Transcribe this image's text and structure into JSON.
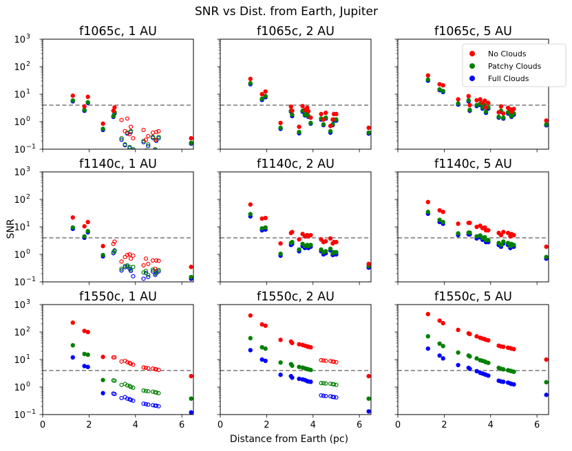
{
  "chart_data": {
    "type": "scatter",
    "title": "SNR vs Dist. from Earth, Jupiter",
    "xlabel": "Distance from Earth (pc)",
    "ylabel": "SNR",
    "xlim": [
      0,
      6.5
    ],
    "ylim": [
      0.1,
      1000
    ],
    "yscale": "log",
    "xticks": [
      "0",
      "2",
      "4",
      "6"
    ],
    "yticks": [
      {
        "base": "10",
        "exp": "−1",
        "value": 0.1
      },
      {
        "base": "10",
        "exp": "0",
        "value": 1
      },
      {
        "base": "10",
        "exp": "1",
        "value": 10
      },
      {
        "base": "10",
        "exp": "2",
        "value": 100
      },
      {
        "base": "10",
        "exp": "3",
        "value": 1000
      }
    ],
    "threshold": 4,
    "legend": {
      "location": "top-right",
      "entries": [
        {
          "label": "No Clouds",
          "color": "#ff0000"
        },
        {
          "label": "Patchy Clouds",
          "color": "#008000"
        },
        {
          "label": "Full Clouds",
          "color": "#0000ff"
        }
      ]
    },
    "distances": [
      1.3,
      1.8,
      1.95,
      2.6,
      3.05,
      3.1,
      3.4,
      3.55,
      3.65,
      3.75,
      3.8,
      3.9,
      4.35,
      4.45,
      4.55,
      4.75,
      4.85,
      4.9,
      5.0,
      6.4
    ],
    "panels": [
      {
        "title": "f1065c, 1 AU",
        "filled_mask": [
          1,
          1,
          1,
          1,
          1,
          1,
          0,
          0,
          0,
          0,
          0,
          0,
          0,
          0,
          0,
          0,
          0,
          0,
          0,
          1
        ],
        "series": [
          {
            "name": "No Clouds",
            "values": [
              8.8,
              3.6,
              8.0,
              0.85,
              2.5,
              3.3,
              1.15,
              0.45,
              1.3,
              0.35,
              0.65,
              0.25,
              0.5,
              0.22,
              0.3,
              0.4,
              0.22,
              0.42,
              0.45,
              0.25
            ]
          },
          {
            "name": "Patchy Clouds",
            "values": [
              5.9,
              2.7,
              5.1,
              0.55,
              1.6,
              2.2,
              0.25,
              0.15,
              0.4,
              0.12,
              0.45,
              0.1,
              0.2,
              0.09,
              0.15,
              0.28,
              0.1,
              0.22,
              0.28,
              0.17
            ]
          },
          {
            "name": "Full Clouds",
            "values": [
              5.5,
              2.5,
              4.8,
              0.5,
              1.5,
              2.0,
              0.22,
              0.14,
              0.37,
              0.11,
              0.42,
              0.09,
              0.18,
              0.08,
              0.13,
              0.26,
              0.09,
              0.2,
              0.25,
              0.16
            ]
          }
        ]
      },
      {
        "title": "f1065c, 2 AU",
        "filled_mask": [
          1,
          1,
          1,
          1,
          1,
          1,
          1,
          1,
          1,
          1,
          1,
          1,
          1,
          1,
          1,
          1,
          1,
          1,
          1,
          1
        ],
        "series": [
          {
            "name": "No Clouds",
            "values": [
              36,
              10,
              12.5,
              0.9,
              3.5,
              2.5,
              0.65,
              3.7,
              2.7,
              3.2,
              2.4,
              1.4,
              1.9,
              1.2,
              2.1,
              0.7,
              1.2,
              1.9,
              1.9,
              0.6
            ]
          },
          {
            "name": "Patchy Clouds",
            "values": [
              25,
              6.8,
              8.5,
              0.6,
              2.5,
              1.8,
              0.42,
              2.5,
              1.8,
              2.2,
              1.6,
              0.9,
              1.3,
              0.8,
              1.4,
              0.45,
              0.8,
              1.2,
              1.2,
              0.4
            ]
          },
          {
            "name": "Full Clouds",
            "values": [
              23,
              6.2,
              7.8,
              0.55,
              2.3,
              1.6,
              0.38,
              2.3,
              1.7,
              2.0,
              1.5,
              0.85,
              1.2,
              0.75,
              1.3,
              0.4,
              0.75,
              1.1,
              1.1,
              0.37
            ]
          }
        ]
      },
      {
        "title": "f1065c, 5 AU",
        "filled_mask": [
          1,
          1,
          1,
          1,
          1,
          1,
          1,
          1,
          1,
          1,
          1,
          1,
          1,
          1,
          1,
          1,
          1,
          1,
          1,
          1
        ],
        "series": [
          {
            "name": "No Clouds",
            "values": [
              48,
              23,
              21,
              6.5,
              8.5,
              4.0,
              6.0,
              6.5,
              4.8,
              5.8,
              3.3,
              4.8,
              2.2,
              3.6,
              2.0,
              3.2,
              2.8,
              2.3,
              2.9,
              1.1
            ]
          },
          {
            "name": "Patchy Clouds",
            "values": [
              34,
              15,
              13,
              4.6,
              6.0,
              2.7,
              4.0,
              4.5,
              3.3,
              4.0,
              2.3,
              3.3,
              1.5,
              2.5,
              1.4,
              2.2,
              1.9,
              1.6,
              2.0,
              0.8
            ]
          },
          {
            "name": "Full Clouds",
            "values": [
              31,
              14,
              12,
              4.2,
              5.5,
              2.5,
              3.7,
              4.1,
              3.0,
              3.7,
              2.1,
              3.0,
              1.4,
              2.3,
              1.3,
              2.0,
              1.8,
              1.5,
              1.8,
              0.74
            ]
          }
        ]
      },
      {
        "title": "f1140c, 1 AU",
        "filled_mask": [
          1,
          1,
          1,
          1,
          0,
          0,
          0,
          0,
          0,
          0,
          0,
          0,
          0,
          0,
          0,
          0,
          0,
          0,
          0,
          1
        ],
        "series": [
          {
            "name": "No Clouds",
            "values": [
              22,
              10.5,
              15,
              2.0,
              2.4,
              2.9,
              0.55,
              0.8,
              0.95,
              1.0,
              0.7,
              0.9,
              0.4,
              0.7,
              0.45,
              0.6,
              0.3,
              0.6,
              0.58,
              0.35
            ]
          },
          {
            "name": "Patchy Clouds",
            "values": [
              9.5,
              4.5,
              7.0,
              0.95,
              1.2,
              1.4,
              0.3,
              0.38,
              0.4,
              0.35,
              0.28,
              0.35,
              0.22,
              0.25,
              0.18,
              0.28,
              0.2,
              0.25,
              0.27,
              0.15
            ]
          },
          {
            "name": "Full Clouds",
            "values": [
              8.5,
              4.0,
              6.3,
              0.85,
              1.1,
              1.3,
              0.26,
              0.34,
              0.36,
              0.3,
              0.25,
              0.16,
              0.13,
              0.21,
              0.15,
              0.24,
              0.18,
              0.21,
              0.24,
              0.13
            ]
          }
        ]
      },
      {
        "title": "f1140c, 2 AU",
        "filled_mask": [
          1,
          1,
          1,
          1,
          1,
          1,
          1,
          1,
          1,
          1,
          1,
          1,
          1,
          1,
          1,
          1,
          1,
          1,
          1,
          1
        ],
        "series": [
          {
            "name": "No Clouds",
            "values": [
              65,
              20,
              21,
              2.5,
              6.0,
              6.5,
              3.5,
              5.5,
              4.5,
              5.0,
              4.5,
              5.0,
              3.5,
              2.8,
              3.0,
              3.8,
              2.5,
              2.8,
              2.8,
              0.45
            ]
          },
          {
            "name": "Patchy Clouds",
            "values": [
              29,
              8.8,
              9.5,
              1.05,
              2.6,
              2.8,
              1.5,
              2.4,
              2.0,
              2.2,
              2.0,
              2.2,
              1.5,
              1.2,
              1.3,
              1.6,
              1.1,
              1.2,
              1.2,
              0.38
            ]
          },
          {
            "name": "Full Clouds",
            "values": [
              24,
              7.5,
              8.0,
              0.9,
              2.2,
              2.4,
              1.3,
              2.0,
              1.7,
              1.9,
              1.7,
              1.9,
              1.3,
              1.0,
              1.1,
              1.4,
              0.95,
              1.0,
              1.0,
              0.33
            ]
          }
        ]
      },
      {
        "title": "f1140c, 5 AU",
        "filled_mask": [
          1,
          1,
          1,
          1,
          1,
          1,
          1,
          1,
          1,
          1,
          1,
          1,
          1,
          1,
          1,
          1,
          1,
          1,
          1,
          1
        ],
        "series": [
          {
            "name": "No Clouds",
            "values": [
              80,
              40,
              35,
              13,
              14,
              14,
              10,
              11,
              9,
              9.5,
              7.5,
              7.5,
              6.0,
              5.0,
              6.5,
              6.0,
              4.5,
              5.5,
              5.0,
              1.9
            ]
          },
          {
            "name": "Patchy Clouds",
            "values": [
              35,
              18,
              15,
              5.8,
              6.2,
              6.2,
              4.5,
              4.9,
              4.0,
              4.2,
              3.3,
              3.3,
              2.6,
              2.2,
              2.9,
              2.6,
              2.0,
              2.4,
              2.2,
              0.8
            ]
          },
          {
            "name": "Full Clouds",
            "values": [
              30,
              15,
              13,
              5.0,
              5.3,
              5.3,
              3.8,
              4.2,
              3.4,
              3.6,
              2.8,
              2.8,
              2.2,
              1.9,
              2.5,
              2.2,
              1.7,
              2.1,
              1.9,
              0.7
            ]
          }
        ]
      },
      {
        "title": "f1550c, 1 AU",
        "filled_mask": [
          1,
          1,
          1,
          1,
          0,
          0,
          0,
          0,
          0,
          0,
          0,
          0,
          0,
          0,
          0,
          0,
          0,
          0,
          0,
          1
        ],
        "series": [
          {
            "name": "No Clouds",
            "values": [
              220,
              110,
              100,
              12.5,
              12,
              12,
              8.5,
              9.0,
              8.0,
              7.5,
              7.0,
              6.5,
              5.2,
              5.0,
              4.8,
              4.7,
              4.5,
              4.4,
              4.2,
              2.5
            ]
          },
          {
            "name": "Patchy Clouds",
            "values": [
              33,
              16,
              15,
              1.8,
              1.75,
              1.7,
              1.2,
              1.3,
              1.15,
              1.1,
              1.0,
              0.95,
              0.75,
              0.72,
              0.7,
              0.68,
              0.65,
              0.63,
              0.6,
              0.38
            ]
          },
          {
            "name": "Full Clouds",
            "values": [
              12,
              5.8,
              5.4,
              0.6,
              0.58,
              0.56,
              0.4,
              0.43,
              0.38,
              0.36,
              0.34,
              0.32,
              0.25,
              0.24,
              0.23,
              0.22,
              0.21,
              0.21,
              0.2,
              0.12
            ]
          }
        ]
      },
      {
        "title": "f1550c, 2 AU",
        "filled_mask": [
          1,
          1,
          1,
          1,
          1,
          1,
          1,
          1,
          1,
          1,
          1,
          1,
          0,
          0,
          0,
          0,
          0,
          0,
          0,
          1
        ],
        "series": [
          {
            "name": "No Clouds",
            "values": [
              400,
              190,
              170,
              52,
              45,
              40,
              36,
              34,
              32,
              30,
              29,
              28,
              9.5,
              9.2,
              9.0,
              8.8,
              8.5,
              8.3,
              8.0,
              2.5
            ]
          },
          {
            "name": "Patchy Clouds",
            "values": [
              60,
              28,
              25,
              7.8,
              6.8,
              6.0,
              5.4,
              5.1,
              4.8,
              4.5,
              4.4,
              4.2,
              1.4,
              1.38,
              1.35,
              1.32,
              1.28,
              1.25,
              1.2,
              0.38
            ]
          },
          {
            "name": "Full Clouds",
            "values": [
              22,
              10,
              9,
              2.8,
              2.5,
              2.2,
              2.0,
              1.9,
              1.8,
              1.65,
              1.6,
              1.55,
              0.5,
              0.48,
              0.47,
              0.46,
              0.44,
              0.43,
              0.42,
              0.13
            ]
          }
        ]
      },
      {
        "title": "f1550c, 5 AU",
        "filled_mask": [
          1,
          1,
          1,
          1,
          1,
          1,
          1,
          1,
          1,
          1,
          1,
          1,
          1,
          1,
          1,
          1,
          1,
          1,
          1,
          1
        ],
        "series": [
          {
            "name": "No Clouds",
            "values": [
              450,
              260,
              210,
              120,
              90,
              85,
              70,
              62,
              58,
              55,
              52,
              50,
              32,
              30,
              29,
              27,
              26,
              25,
              24,
              10
            ]
          },
          {
            "name": "Patchy Clouds",
            "values": [
              70,
              38,
              31,
              18,
              14,
              13,
              11,
              9.5,
              9.0,
              8.5,
              8.0,
              7.6,
              5.0,
              4.6,
              4.4,
              4.1,
              3.9,
              3.8,
              3.6,
              1.5
            ]
          },
          {
            "name": "Full Clouds",
            "values": [
              25,
              14,
              11,
              6.3,
              5.0,
              4.6,
              3.8,
              3.3,
              3.1,
              2.9,
              2.8,
              2.6,
              1.7,
              1.6,
              1.55,
              1.45,
              1.35,
              1.3,
              1.25,
              0.52
            ]
          }
        ]
      }
    ]
  }
}
